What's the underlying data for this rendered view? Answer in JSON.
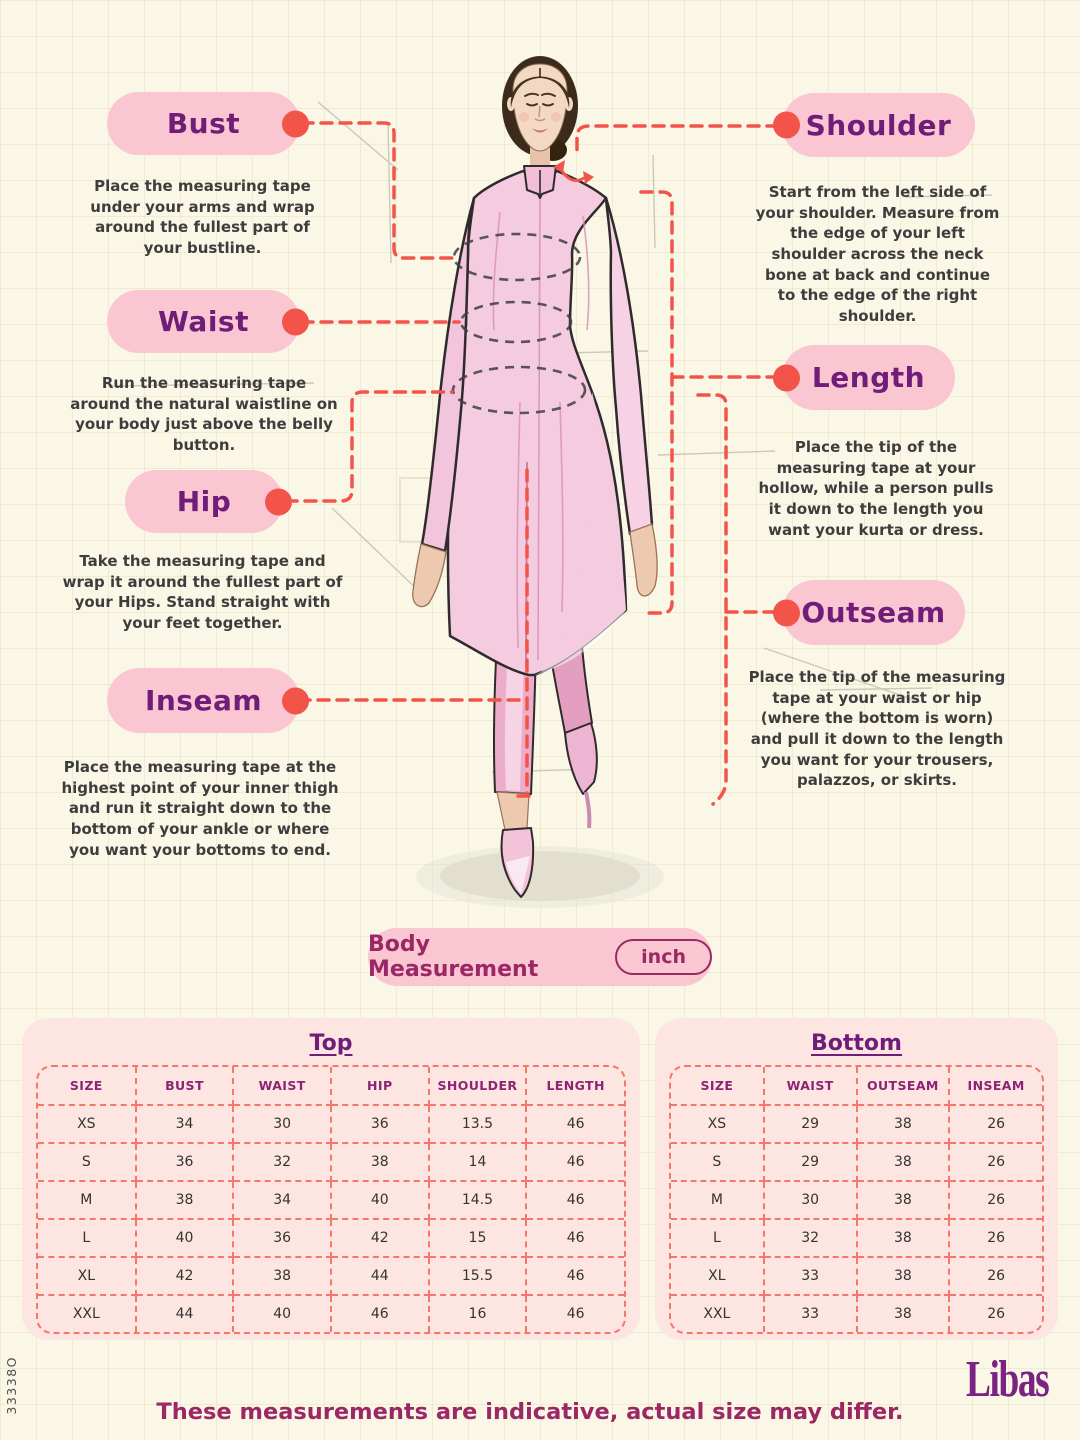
{
  "page": {
    "side_code": "33338O",
    "footer_note": "These measurements are indicative, actual size may differ.",
    "brand": "Libas"
  },
  "colors": {
    "background": "#faf7e6",
    "pill_pink": "#f9c6d1",
    "label_purple": "#6f1d78",
    "connector_red": "#f2544a",
    "table_panel_pink": "#fde6e2",
    "table_border_coral": "#f4786a",
    "header_magenta": "#8c2376",
    "footer_magenta": "#9c2765",
    "brand_purple": "#7b2383"
  },
  "icons": {
    "connector_dot": "red-circle",
    "shoulder_arrow": "double-headed-arrow"
  },
  "measurements": {
    "left": [
      {
        "label": "Bust",
        "description": "Place the measuring tape under your arms and wrap around the fullest part of your bustline."
      },
      {
        "label": "Waist",
        "description": "Run the measuring tape around the natural waistline on your body just above the belly button."
      },
      {
        "label": "Hip",
        "description": "Take the measuring tape and wrap it around the fullest part of your Hips. Stand straight with your feet together."
      },
      {
        "label": "Inseam",
        "description": "Place the measuring tape at the highest point of your inner thigh and run it straight down to the bottom of your ankle or where you want your bottoms to end."
      }
    ],
    "right": [
      {
        "label": "Shoulder",
        "description": "Start from the left side of your shoulder. Measure from the edge of your left shoulder across the neck bone at back and continue to the edge of the right shoulder."
      },
      {
        "label": "Length",
        "description": "Place the tip of the measuring tape at your hollow, while a person pulls it down to the length you want your kurta or dress."
      },
      {
        "label": "Outseam",
        "description": "Place the tip of the measuring tape at your waist or hip (where the bottom is worn) and pull it down to the length you want for your trousers, palazzos, or skirts."
      }
    ]
  },
  "unit_bar": {
    "label": "Body Measurement",
    "unit": "inch"
  },
  "tables": [
    {
      "title": "Top",
      "headers": [
        "SIZE",
        "BUST",
        "WAIST",
        "HIP",
        "SHOULDER",
        "LENGTH"
      ],
      "rows": [
        [
          "XS",
          "34",
          "30",
          "36",
          "13.5",
          "46"
        ],
        [
          "S",
          "36",
          "32",
          "38",
          "14",
          "46"
        ],
        [
          "M",
          "38",
          "34",
          "40",
          "14.5",
          "46"
        ],
        [
          "L",
          "40",
          "36",
          "42",
          "15",
          "46"
        ],
        [
          "XL",
          "42",
          "38",
          "44",
          "15.5",
          "46"
        ],
        [
          "XXL",
          "44",
          "40",
          "46",
          "16",
          "46"
        ]
      ]
    },
    {
      "title": "Bottom",
      "headers": [
        "SIZE",
        "WAIST",
        "OUTSEAM",
        "INSEAM"
      ],
      "rows": [
        [
          "XS",
          "29",
          "38",
          "26"
        ],
        [
          "S",
          "29",
          "38",
          "26"
        ],
        [
          "M",
          "30",
          "38",
          "26"
        ],
        [
          "L",
          "32",
          "38",
          "26"
        ],
        [
          "XL",
          "33",
          "38",
          "26"
        ],
        [
          "XXL",
          "33",
          "38",
          "26"
        ]
      ]
    }
  ]
}
